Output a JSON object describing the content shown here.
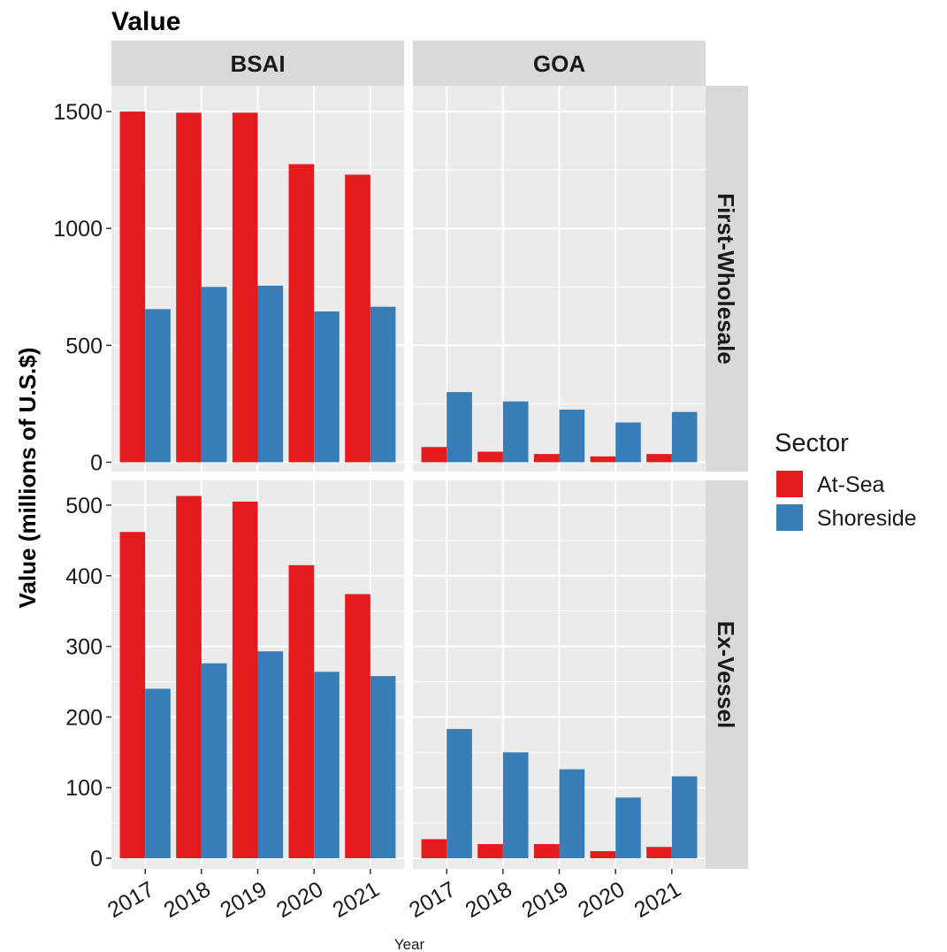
{
  "chart_data": {
    "type": "bar",
    "title": "Value",
    "xlabel": "Year",
    "ylabel": "Value (millions of U.S.$)",
    "categories": [
      "2017",
      "2018",
      "2019",
      "2020",
      "2021"
    ],
    "column_facets": [
      "BSAI",
      "GOA"
    ],
    "row_facets": [
      "First-Wholesale",
      "Ex-Vessel"
    ],
    "legend": {
      "title": "Sector",
      "placement": "right",
      "entries": [
        {
          "name": "At-Sea",
          "color": "#e41a1c"
        },
        {
          "name": "Shoreside",
          "color": "#377eb8"
        }
      ]
    },
    "grid": true,
    "panel_background": "#ebebeb",
    "strip_background": "#d9d9d9",
    "rows": [
      {
        "facet": "First-Wholesale",
        "ylim": [
          -40,
          1610
        ],
        "yticks": [
          0,
          500,
          1000,
          1500
        ],
        "yticks_labels": [
          "0",
          "500",
          "1000",
          "1500"
        ],
        "minor_yticks": [
          250,
          750,
          1250
        ],
        "panels": [
          {
            "facet": "BSAI",
            "series": [
              {
                "name": "At-Sea",
                "values": [
                  1500,
                  1495,
                  1495,
                  1275,
                  1230
                ]
              },
              {
                "name": "Shoreside",
                "values": [
                  655,
                  750,
                  755,
                  645,
                  665
                ]
              }
            ]
          },
          {
            "facet": "GOA",
            "series": [
              {
                "name": "At-Sea",
                "values": [
                  65,
                  45,
                  35,
                  25,
                  35
                ]
              },
              {
                "name": "Shoreside",
                "values": [
                  300,
                  260,
                  225,
                  170,
                  215
                ]
              }
            ]
          }
        ]
      },
      {
        "facet": "Ex-Vessel",
        "ylim": [
          -15,
          535
        ],
        "yticks": [
          0,
          100,
          200,
          300,
          400,
          500
        ],
        "yticks_labels": [
          "0",
          "100",
          "200",
          "300",
          "400",
          "500"
        ],
        "minor_yticks": [
          50,
          150,
          250,
          350,
          450
        ],
        "panels": [
          {
            "facet": "BSAI",
            "series": [
              {
                "name": "At-Sea",
                "values": [
                  462,
                  513,
                  505,
                  415,
                  374
                ]
              },
              {
                "name": "Shoreside",
                "values": [
                  240,
                  276,
                  293,
                  264,
                  258
                ]
              }
            ]
          },
          {
            "facet": "GOA",
            "series": [
              {
                "name": "At-Sea",
                "values": [
                  27,
                  20,
                  20,
                  10,
                  16
                ]
              },
              {
                "name": "Shoreside",
                "values": [
                  183,
                  150,
                  126,
                  86,
                  116
                ]
              }
            ]
          }
        ]
      }
    ]
  }
}
